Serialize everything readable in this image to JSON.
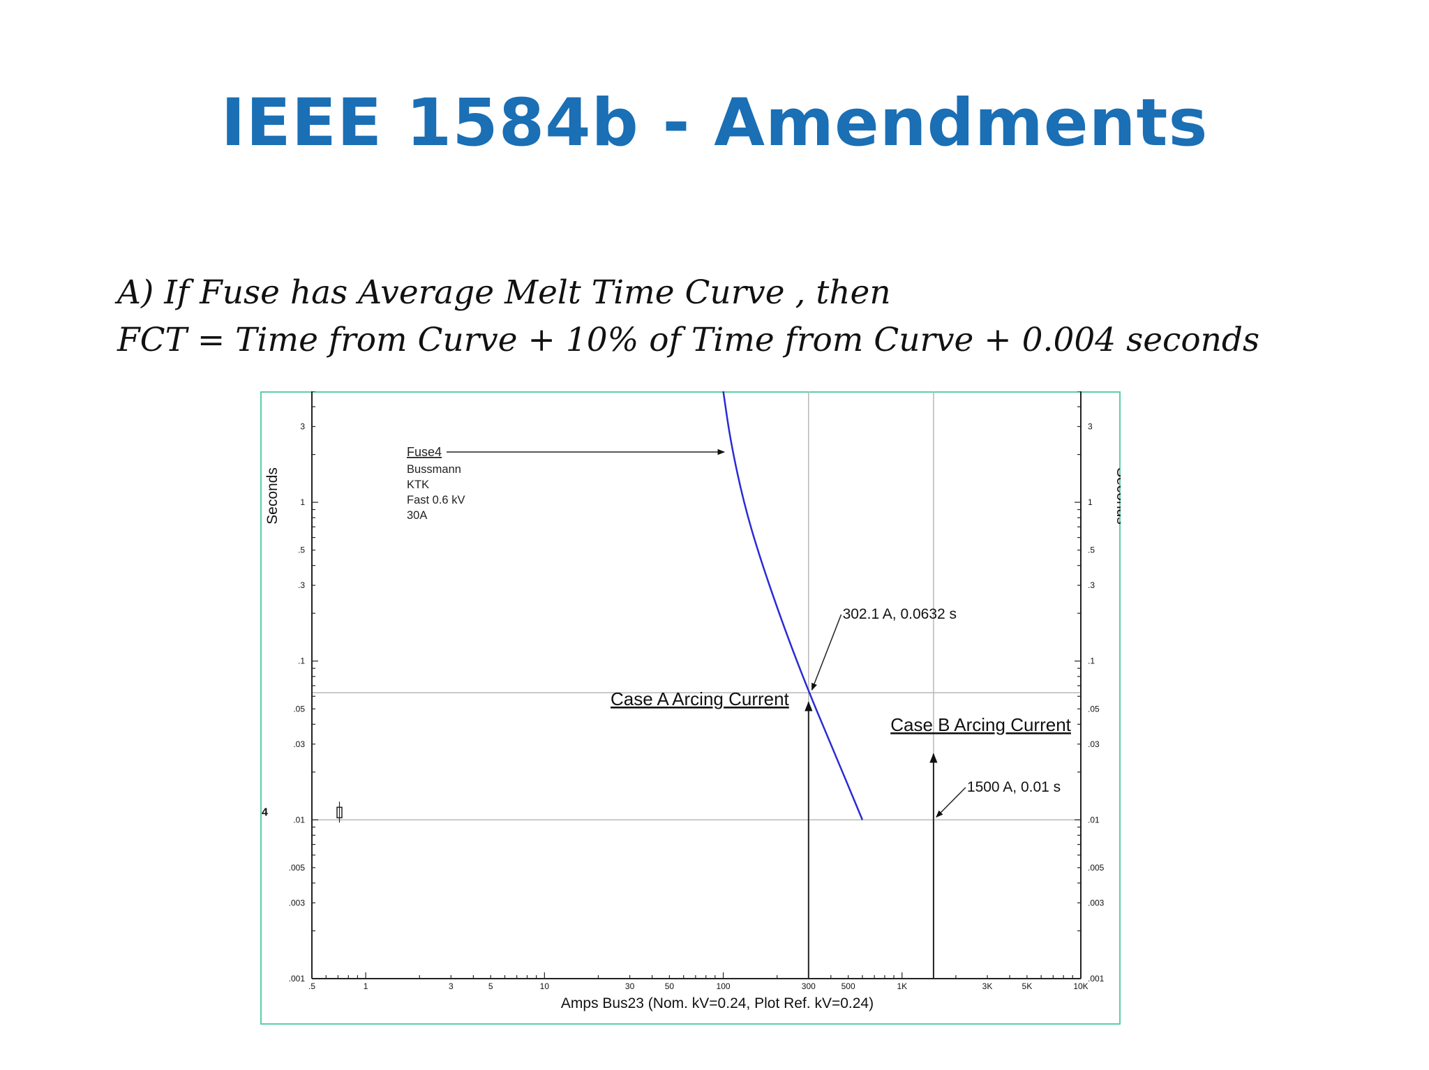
{
  "slide": {
    "title": "IEEE 1584b - Amendments",
    "title_color": "#1a6fb5",
    "formula_line_1": "A) If  Fuse has Average Melt Time Curve , then",
    "formula_line_2": "FCT = Time from Curve +  10% of Time from Curve + 0.004 seconds"
  },
  "chart_data": {
    "type": "line",
    "x_scale": "log",
    "y_scale": "log",
    "xlim": [
      0.5,
      10000
    ],
    "ylim": [
      0.001,
      5
    ],
    "xlabel": "Amps   Bus23 (Nom. kV=0.24, Plot Ref. kV=0.24)",
    "ylabel": "Seconds",
    "ylabel_right": "Seconds",
    "x_ticks": [
      {
        "v": 0.5,
        "label": ".5"
      },
      {
        "v": 1,
        "label": "1"
      },
      {
        "v": 3,
        "label": "3"
      },
      {
        "v": 5,
        "label": "5"
      },
      {
        "v": 10,
        "label": "10"
      },
      {
        "v": 30,
        "label": "30"
      },
      {
        "v": 50,
        "label": "50"
      },
      {
        "v": 100,
        "label": "100"
      },
      {
        "v": 300,
        "label": "300"
      },
      {
        "v": 500,
        "label": "500"
      },
      {
        "v": 1000,
        "label": "1K"
      },
      {
        "v": 3000,
        "label": "3K"
      },
      {
        "v": 5000,
        "label": "5K"
      },
      {
        "v": 10000,
        "label": "10K"
      }
    ],
    "y_ticks": [
      {
        "v": 3,
        "label": "3"
      },
      {
        "v": 1,
        "label": "1"
      },
      {
        "v": 0.5,
        "label": ".5"
      },
      {
        "v": 0.3,
        "label": ".3"
      },
      {
        "v": 0.1,
        "label": ".1"
      },
      {
        "v": 0.05,
        "label": ".05"
      },
      {
        "v": 0.03,
        "label": ".03"
      },
      {
        "v": 0.01,
        "label": ".01"
      },
      {
        "v": 0.005,
        "label": ".005"
      },
      {
        "v": 0.003,
        "label": ".003"
      },
      {
        "v": 0.001,
        "label": ".001"
      }
    ],
    "series": [
      {
        "name": "Fuse4",
        "color": "#2a2ad6",
        "points": [
          [
            100,
            5
          ],
          [
            110,
            2.4
          ],
          [
            130,
            1.0
          ],
          [
            160,
            0.45
          ],
          [
            220,
            0.16
          ],
          [
            302.1,
            0.0632
          ],
          [
            400,
            0.03
          ],
          [
            600,
            0.01
          ]
        ]
      }
    ],
    "device_label": {
      "name": "Fuse4",
      "lines": [
        "Bussmann",
        "KTK",
        "Fast  0.6 kV",
        "30A"
      ]
    },
    "reference_lines": {
      "vertical": [
        300,
        1500
      ],
      "horizontal": [
        0.0632,
        0.01
      ]
    },
    "annotations": [
      {
        "id": "point-a",
        "text": "302.1 A, 0.0632 s",
        "x": 302.1,
        "y": 0.0632
      },
      {
        "id": "point-b",
        "text": "1500 A, 0.01 s",
        "x": 1500,
        "y": 0.01
      }
    ],
    "arrows": [
      {
        "id": "case-a",
        "text": "Case A Arcing Current",
        "x": 300,
        "y": 0.055
      },
      {
        "id": "case-b",
        "text": "Case B Arcing Current",
        "x": 1500,
        "y": 0.026
      }
    ],
    "grid": false,
    "marker_label": "4"
  }
}
